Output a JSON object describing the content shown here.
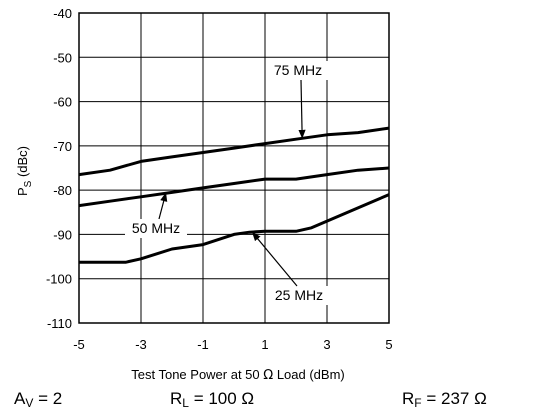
{
  "chart_data": {
    "type": "line",
    "xlabel_parts": {
      "text": "Test Tone Power at 50 ",
      "symbol": "Ω",
      "rest": " Load (dBm)"
    },
    "ylabel_parts": {
      "main": "P",
      "sub": "S",
      "rest": " (dBc)"
    },
    "xlim": [
      -5,
      5
    ],
    "ylim": [
      -110,
      -40
    ],
    "xticks": [
      "-5",
      "-3",
      "-1",
      "1",
      "3",
      "5"
    ],
    "yticks": [
      "-40",
      "-50",
      "-60",
      "-70",
      "-80",
      "-90",
      "-100",
      "-110"
    ],
    "grid": true,
    "series": [
      {
        "name": "75 MHz",
        "x": [
          -5,
          -4,
          -3,
          -2,
          -1,
          0,
          1,
          2,
          3,
          4,
          5
        ],
        "y": [
          -76.5,
          -75.5,
          -73.5,
          -72.5,
          -71.5,
          -70.5,
          -69.5,
          -68.5,
          -67.5,
          -67,
          -66
        ]
      },
      {
        "name": "50 MHz",
        "x": [
          -5,
          -4,
          -3,
          -2,
          -1,
          0,
          1,
          2,
          3,
          4,
          5
        ],
        "y": [
          -83.5,
          -82.5,
          -81.5,
          -80.5,
          -79.5,
          -78.5,
          -77.5,
          -77.5,
          -76.5,
          -75.5,
          -75
        ]
      },
      {
        "name": "25 MHz",
        "x": [
          -5,
          -4,
          -3.5,
          -3,
          -2,
          -1,
          0,
          0.5,
          1,
          2,
          2.5,
          3,
          4,
          5
        ],
        "y": [
          -96.3,
          -96.3,
          -96.3,
          -95.5,
          -93.3,
          -92.3,
          -90,
          -89.5,
          -89.3,
          -89.3,
          -88.5,
          -87,
          -84,
          -81
        ]
      }
    ]
  },
  "conditions": {
    "av": {
      "main": "A",
      "sub": "V",
      "rest": " = 2"
    },
    "rl": {
      "main": "R",
      "sub": "L",
      "rest": " = 100 Ω"
    },
    "rf": {
      "main": "R",
      "sub": "F",
      "rest": " = 237 Ω"
    }
  }
}
